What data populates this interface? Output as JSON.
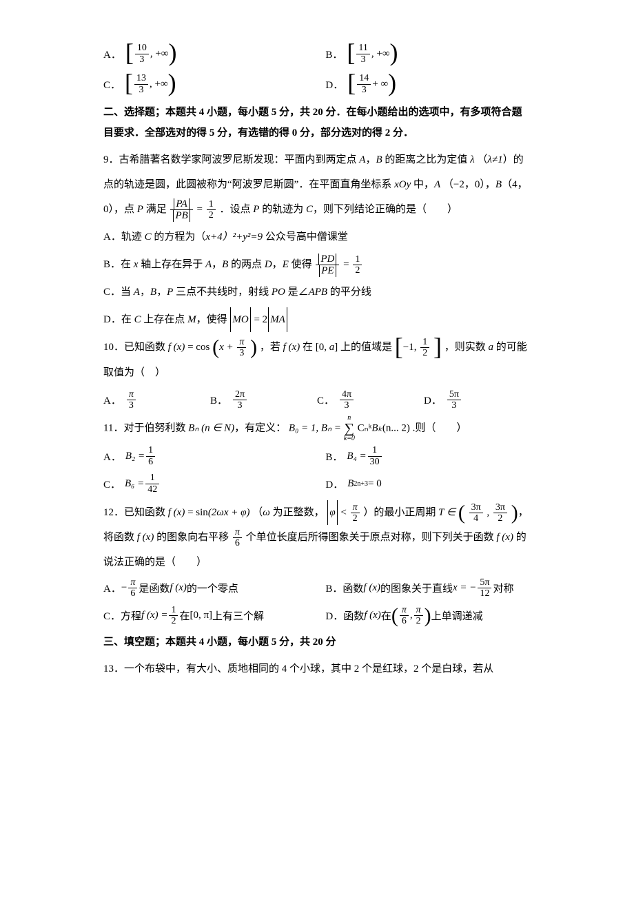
{
  "text_color": "#000000",
  "background_color": "#ffffff",
  "base_font_size": 15,
  "q8": {
    "A_frac": {
      "num": "10",
      "den": "3"
    },
    "A_suffix": ", +∞",
    "B_frac": {
      "num": "11",
      "den": "3"
    },
    "B_suffix": ", +∞",
    "C_frac": {
      "num": "13",
      "den": "3"
    },
    "C_suffix": ", +∞",
    "D_frac": {
      "num": "14",
      "den": "3"
    },
    "D_suffix": "+ ∞"
  },
  "section2": "二、选择题；本题共 4 小题，每小题 5 分，共 20 分．在每小题给出的选项中，有多项符合题目要求．全部选对的得 5 分，有选错的得 0 分，部分选对的得 2 分．",
  "q9": {
    "stem1": "9．古希腊著名数学家阿波罗尼斯发现：平面内到两定点 ",
    "A": "A",
    "comma1": "，",
    "B": "B",
    "stem1b": " 的距离之比为定值 ",
    "lambda": "λ",
    "stem2a": "（",
    "lambda_neq": "λ≠1",
    "stem2b": "）的点的轨迹是圆，此圆被称为“阿波罗尼斯圆”．在平面直角坐标系 ",
    "xOy": "xOy",
    "stem2c": " 中，",
    "A2": "A",
    "stem3a": "（−2，0），",
    "B2": "B",
    "stem3b": "（4，0），点 ",
    "P": "P",
    "stem3c": " 满足 ",
    "PA": "PA",
    "PB": "PB",
    "half": {
      "num": "1",
      "den": "2"
    },
    "stem3d": "．设点 ",
    "P2": "P",
    "stem3e": " 的轨迹为 ",
    "C": "C",
    "stem3f": "，则下列结论正确的是（　　）",
    "optA_pre": "A．轨迹 ",
    "optA_C": "C",
    "optA_body": " 的方程为（",
    "optA_expr": "x+4）²+y²=9",
    "optA_tail": " 公众号高中僧课堂",
    "optB_pre": "B．在 ",
    "optB_x": "x",
    "optB_mid": " 轴上存在异于 ",
    "optB_A": "A",
    "optB_c": "，",
    "optB_B": "B",
    "optB_mid2": " 的两点 ",
    "optB_D": "D",
    "optB_c2": "，",
    "optB_E": "E",
    "optB_mid3": " 使得 ",
    "PD": "PD",
    "PE": "PE",
    "optC_pre": "C．当 ",
    "optC_A": "A",
    "optC_c": "，",
    "optC_B": "B",
    "optC_c2": "，",
    "optC_P": "P",
    "optC_mid": " 三点不共线时，射线 ",
    "optC_PO": "PO",
    "optC_mid2": " 是∠",
    "optC_APB": "APB",
    "optC_tail": " 的平分线",
    "optD_pre": "D．在 ",
    "optD_C": "C",
    "optD_mid": " 上存在点 ",
    "optD_M": "M",
    "optD_mid2": "，使得 ",
    "optD_MO": "MO",
    "optD_eq": " = 2",
    "optD_MA": "MA"
  },
  "q10": {
    "stem_a": "10．已知函数 ",
    "fx": "f (x)",
    "eq": " = cos",
    "arg_x": "x +",
    "arg_frac": {
      "num": "π",
      "den": "3"
    },
    "stem_b": "，若 ",
    "fx2": "f (x)",
    "stem_c": " 在 ",
    "range1_l": "[",
    "range1_a": "0, ",
    "range1_b": "a",
    "range1_r": "]",
    "stem_d": " 上的值域是 ",
    "range2_a": "−1, ",
    "range2_frac": {
      "num": "1",
      "den": "2"
    },
    "stem_e": "，则实数 ",
    "a": "a",
    "stem_f": " 的可能取值为（　）",
    "A": {
      "num": "π",
      "den": "3"
    },
    "B": {
      "num": "2π",
      "den": "3"
    },
    "C": {
      "num": "4π",
      "den": "3"
    },
    "D": {
      "num": "5π",
      "den": "3"
    }
  },
  "q11": {
    "stem_a": "11．对于伯努利数 ",
    "Bn": "Bₙ",
    "paren_n": "(n ∈ N)",
    "stem_b": "，有定义：",
    "B0": "B₀ = 1, Bₙ =",
    "sum_top": "n",
    "sum_bot": "k=0",
    "Cnk": "Cₙᵏ",
    "Bk": "Bₖ",
    "tail": "(n... 2) .则（　　）",
    "A_l": "B₂ =",
    "A_f": {
      "num": "1",
      "den": "6"
    },
    "B_l": "B₄ =",
    "B_f": {
      "num": "1",
      "den": "30"
    },
    "C_l": "B₆ =",
    "C_f": {
      "num": "1",
      "den": "42"
    },
    "D_l": "B",
    "D_sub": "2n+3",
    "D_r": " = 0"
  },
  "q12": {
    "stem_a": "12．已知函数 ",
    "fx": "f (x)",
    "eq": " = sin",
    "arg": "(2ωx + φ)",
    "stem_b": "（",
    "omega": "ω",
    "stem_c": " 为正整数，",
    "abs_phi": "φ",
    "lt": " < ",
    "pi2": {
      "num": "π",
      "den": "2"
    },
    "stem_d": "）的最小正周期 ",
    "T": "T ∈",
    "r1": {
      "num": "3π",
      "den": "4"
    },
    "r2": {
      "num": "3π",
      "den": "2"
    },
    "comma": "，",
    "stem_e": "将函数 ",
    "fx2": "f (x)",
    "stem_f": " 的图象向右平移 ",
    "pi6": {
      "num": "π",
      "den": "6"
    },
    "stem_g": " 个单位长度后所得图象关于原点对称，则下列关于函数 ",
    "fx3": "f (x)",
    "stem_h": " 的说法正确的是（　　）",
    "A_pre": "A．",
    "A_neg": "−",
    "A_f": {
      "num": "π",
      "den": "6"
    },
    "A_mid": " 是函数 ",
    "A_fx": "f (x)",
    "A_tail": " 的一个零点",
    "B_pre": "B．函数 ",
    "B_fx": "f (x)",
    "B_mid": " 的图象关于直线 ",
    "B_x": "x = −",
    "B_f": {
      "num": "5π",
      "den": "12"
    },
    "B_tail": " 对称",
    "C_pre": "C．方程 ",
    "C_fx": "f (x) = ",
    "C_f": {
      "num": "1",
      "den": "2"
    },
    "C_mid": " 在 ",
    "C_r": "[0, π]",
    "C_tail": " 上有三个解",
    "D_pre": "D．函数 ",
    "D_fx": "f (x)",
    "D_mid": " 在 ",
    "D_r1": {
      "num": "π",
      "den": "6"
    },
    "D_r2": {
      "num": "π",
      "den": "2"
    },
    "D_tail": " 上单调递减"
  },
  "section3": "三、填空题；本题共 4 小题，每小题 5 分，共 20 分",
  "q13": "13．一个布袋中，有大小、质地相同的 4 个小球，其中 2 个是红球，2 个是白球，若从"
}
